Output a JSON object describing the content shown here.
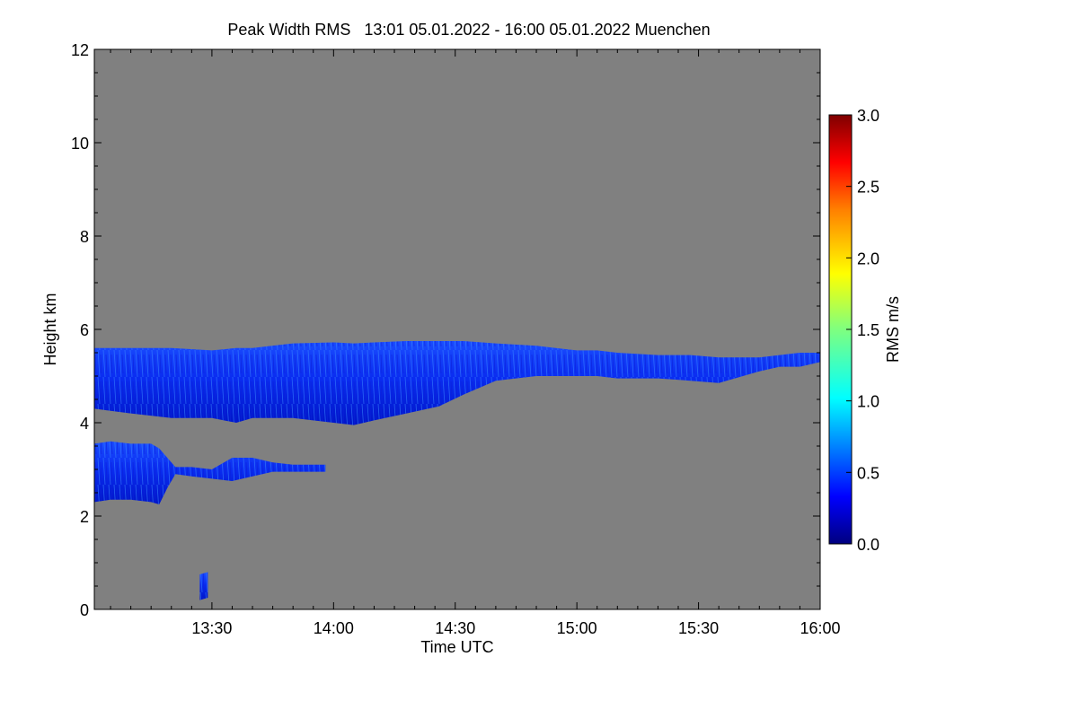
{
  "chart_data": {
    "type": "heatmap",
    "title": "Peak Width RMS   13:01 05.01.2022 - 16:00 05.01.2022 Muenchen",
    "xlabel": "Time UTC",
    "ylabel": "Height km",
    "x_range_minutes": [
      781,
      960
    ],
    "x_ticks": [
      {
        "label": "13:30",
        "value": 810
      },
      {
        "label": "14:00",
        "value": 840
      },
      {
        "label": "14:30",
        "value": 870
      },
      {
        "label": "15:00",
        "value": 900
      },
      {
        "label": "15:30",
        "value": 930
      },
      {
        "label": "16:00",
        "value": 960
      }
    ],
    "ylim": [
      0,
      12
    ],
    "y_ticks": [
      0,
      2,
      4,
      6,
      8,
      10,
      12
    ],
    "background_color": "#808080",
    "colorbar": {
      "label": "RMS m/s",
      "range": [
        0.0,
        3.0
      ],
      "ticks": [
        "0.0",
        "0.5",
        "1.0",
        "1.5",
        "2.0",
        "2.5",
        "3.0"
      ],
      "tick_values": [
        0.0,
        0.5,
        1.0,
        1.5,
        2.0,
        2.5,
        3.0
      ],
      "colormap": [
        "#00007f",
        "#0000ff",
        "#007fff",
        "#00ffff",
        "#7fff7f",
        "#ffff00",
        "#ff7f00",
        "#ff0000",
        "#7f0000"
      ]
    },
    "layers": [
      {
        "name": "upper-cloud-layer",
        "typical_rms": 0.4,
        "time_minutes": [
          781,
          790,
          800,
          810,
          816,
          820,
          830,
          840,
          845,
          850,
          858,
          866,
          872,
          880,
          890,
          900,
          905,
          910,
          920,
          928,
          935,
          945,
          950,
          955,
          960
        ],
        "top_km": [
          5.6,
          5.6,
          5.6,
          5.55,
          5.6,
          5.6,
          5.7,
          5.72,
          5.7,
          5.72,
          5.75,
          5.75,
          5.75,
          5.7,
          5.65,
          5.55,
          5.55,
          5.5,
          5.45,
          5.45,
          5.4,
          5.4,
          5.45,
          5.5,
          5.5
        ],
        "bottom_km": [
          4.3,
          4.2,
          4.1,
          4.1,
          4.0,
          4.1,
          4.1,
          4.0,
          3.95,
          4.05,
          4.2,
          4.35,
          4.6,
          4.9,
          5.0,
          5.0,
          5.0,
          4.95,
          4.95,
          4.9,
          4.85,
          5.1,
          5.2,
          5.2,
          5.3
        ]
      },
      {
        "name": "lower-cloud-layer",
        "typical_rms": 0.3,
        "time_minutes": [
          781,
          785,
          790,
          795,
          797,
          799,
          801,
          805,
          810,
          815,
          820,
          825,
          830,
          835,
          838
        ],
        "top_km": [
          3.55,
          3.6,
          3.55,
          3.55,
          3.45,
          3.25,
          3.05,
          3.05,
          3.0,
          3.25,
          3.25,
          3.15,
          3.1,
          3.1,
          3.1
        ],
        "bottom_km": [
          2.3,
          2.35,
          2.35,
          2.3,
          2.25,
          2.6,
          2.9,
          2.85,
          2.8,
          2.75,
          2.85,
          2.95,
          2.95,
          2.95,
          2.95
        ]
      },
      {
        "name": "near-ground-echo",
        "typical_rms": 0.4,
        "time_minutes": [
          807,
          809
        ],
        "top_km": [
          0.75,
          0.8
        ],
        "bottom_km": [
          0.2,
          0.25
        ]
      }
    ]
  }
}
